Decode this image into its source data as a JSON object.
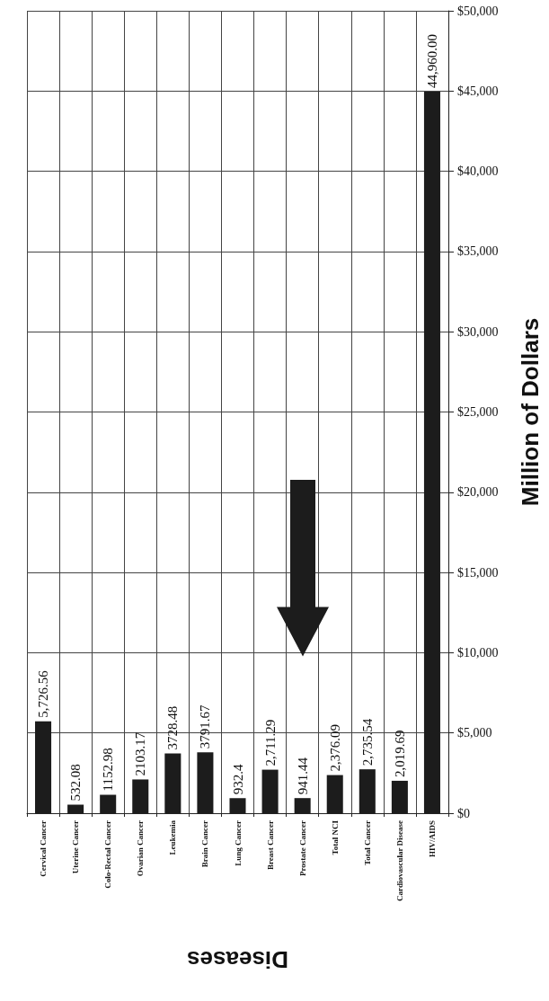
{
  "chart_data": {
    "type": "bar",
    "xlabel": "Diseases",
    "ylabel": "Million of Dollars",
    "categories": [
      "Cervical Cancer",
      "Uterine Cancer",
      "Colo-Rectal Cancer",
      "Ovarian Cancer",
      "Leukemia",
      "Brain Cancer",
      "Lung Cancer",
      "Breast Cancer",
      "Prostate Cancer",
      "Total NCI",
      "Total Cancer",
      "Cardiovascular Disease",
      "HIV/AIDS"
    ],
    "values": [
      5726.56,
      532.08,
      1152.98,
      2103.17,
      3728.48,
      3791.67,
      932.4,
      2711.29,
      941.44,
      2376.09,
      2735.54,
      2019.69,
      44960.0
    ],
    "value_labels": [
      "5,726.56",
      "532.08",
      "1152.98",
      "2103.17",
      "3728.48",
      "3791.67",
      "932.4",
      "2,711.29",
      "941.44",
      "2,376.09",
      "2,735.54",
      "2,019.69",
      "44,960.00"
    ],
    "color": "#1c1c1c",
    "ylim": [
      0,
      50000
    ],
    "yticks": [
      {
        "value": 0,
        "label": "$0"
      },
      {
        "value": 5000,
        "label": "$5,000"
      },
      {
        "value": 10000,
        "label": "$10,000"
      },
      {
        "value": 15000,
        "label": "$15,000"
      },
      {
        "value": 20000,
        "label": "$20,000"
      },
      {
        "value": 25000,
        "label": "$25,000"
      },
      {
        "value": 30000,
        "label": "$30,000"
      },
      {
        "value": 35000,
        "label": "$35,000"
      },
      {
        "value": 40000,
        "label": "$40,000"
      },
      {
        "value": 45000,
        "label": "$45,000"
      },
      {
        "value": 50000,
        "label": "$50,000"
      }
    ],
    "grid": true
  }
}
